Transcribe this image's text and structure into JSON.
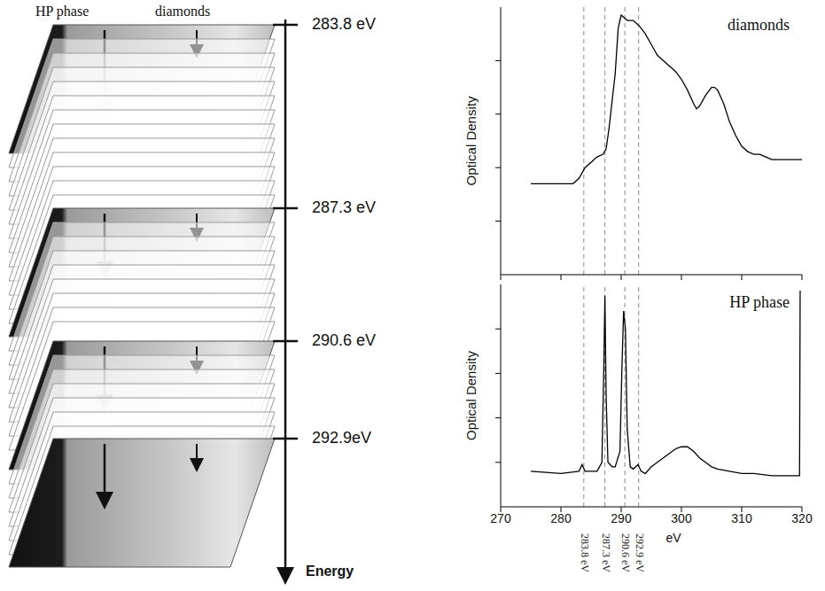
{
  "chart_data": [
    {
      "type": "line",
      "title": "diamonds",
      "y_label": "Optical Density",
      "x": [
        275,
        282,
        283,
        284,
        285,
        286,
        287,
        287.5,
        288,
        289,
        289.5,
        290,
        290.5,
        291,
        292,
        293,
        294,
        295,
        296,
        297,
        298,
        299,
        300,
        301,
        302,
        302.5,
        303,
        304,
        305,
        305.5,
        306,
        307,
        308,
        309,
        310,
        311,
        312,
        313,
        314,
        315,
        320
      ],
      "values": [
        0.34,
        0.34,
        0.36,
        0.4,
        0.42,
        0.44,
        0.45,
        0.47,
        0.55,
        0.75,
        0.92,
        0.97,
        0.96,
        0.95,
        0.95,
        0.93,
        0.9,
        0.86,
        0.82,
        0.8,
        0.78,
        0.76,
        0.73,
        0.69,
        0.64,
        0.62,
        0.63,
        0.67,
        0.7,
        0.7,
        0.69,
        0.64,
        0.57,
        0.52,
        0.48,
        0.46,
        0.45,
        0.45,
        0.44,
        0.43,
        0.43
      ],
      "color": "#000000",
      "xlim": [
        270,
        320
      ],
      "xticks": [
        270,
        280,
        290,
        300,
        310,
        320
      ],
      "ylim": [
        0,
        1
      ],
      "yticks": [
        0.2,
        0.4,
        0.6,
        0.8
      ],
      "tick_labels": false,
      "annotations": [
        {
          "x": 283.8
        },
        {
          "x": 287.3
        },
        {
          "x": 290.6
        },
        {
          "x": 292.9
        }
      ]
    },
    {
      "type": "line",
      "title": "HP phase",
      "x_label": "eV",
      "y_label": "Optical Density",
      "x": [
        275,
        280,
        283,
        283.5,
        284,
        286,
        286.8,
        287.1,
        287.3,
        287.5,
        287.8,
        288.5,
        289,
        289.8,
        290.1,
        290.4,
        290.7,
        291,
        291.5,
        292,
        292.8,
        293.3,
        294,
        295,
        296,
        297,
        298,
        299,
        300,
        301,
        302,
        303,
        304,
        305,
        306,
        308,
        310,
        312,
        315,
        319.6,
        319.7,
        319.8
      ],
      "values": [
        0.16,
        0.15,
        0.16,
        0.19,
        0.16,
        0.16,
        0.2,
        0.6,
        0.95,
        0.5,
        0.2,
        0.18,
        0.18,
        0.25,
        0.6,
        0.88,
        0.8,
        0.35,
        0.18,
        0.17,
        0.19,
        0.16,
        0.15,
        0.18,
        0.2,
        0.22,
        0.24,
        0.26,
        0.27,
        0.27,
        0.25,
        0.22,
        0.2,
        0.18,
        0.17,
        0.16,
        0.15,
        0.15,
        0.14,
        0.14,
        0.97,
        0.97
      ],
      "color": "#000000",
      "xlim": [
        270,
        320
      ],
      "xticks": [
        270,
        280,
        290,
        300,
        310,
        320
      ],
      "ylim": [
        0,
        1
      ],
      "yticks": [
        0.2,
        0.4,
        0.6,
        0.8
      ],
      "tick_labels": "x",
      "annotations": [
        {
          "x": 283.8,
          "label": "283.8 eV"
        },
        {
          "x": 287.3,
          "label": "287.3 eV"
        },
        {
          "x": 290.6,
          "label": "290.6 eV"
        },
        {
          "x": 292.9,
          "label": "292.9 eV"
        }
      ]
    }
  ],
  "stack": {
    "left_label": "HP phase",
    "right_label": "diamonds",
    "axis_label": "Energy",
    "levels": [
      {
        "value": 283.8,
        "label": "283.8 eV"
      },
      {
        "value": 287.3,
        "label": "287.3 eV"
      },
      {
        "value": 290.6,
        "label": "290.6 eV"
      },
      {
        "value": 292.9,
        "label": "292.9eV"
      }
    ]
  }
}
